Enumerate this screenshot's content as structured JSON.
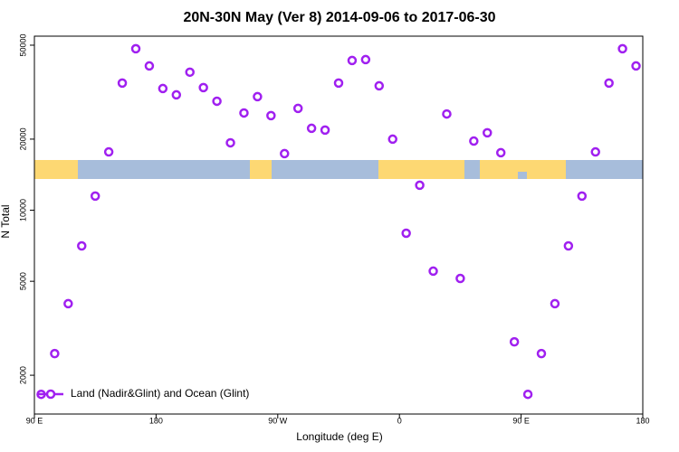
{
  "chart_data": {
    "type": "scatter",
    "title": "20N-30N May (Ver 8)   2014-09-06 to 2017-06-30",
    "x_label": "Longitude (deg E)",
    "y_label": "N Total",
    "log_y": true,
    "xlim": [
      90,
      540
    ],
    "ylim": [
      1370,
      54600
    ],
    "xticks": [
      {
        "value": 90,
        "label": "90 E"
      },
      180,
      {
        "value": 270,
        "label": "90 W"
      },
      {
        "value": 360,
        "label": "0"
      },
      {
        "value": 450,
        "label": "90 E"
      },
      {
        "value": 540,
        "label": "180"
      }
    ],
    "yticks": [
      2000,
      5000,
      10000,
      20000,
      50000
    ],
    "legend": "bottom-left",
    "series": [
      {
        "name": "Land (Nadir&Glint) and Ocean (Glint)",
        "color": "#a020f0",
        "x": [
          95,
          105,
          115,
          125,
          135,
          145,
          155,
          165,
          175,
          185,
          195,
          205,
          215,
          225,
          235,
          245,
          255,
          265,
          275,
          285,
          295,
          305,
          315,
          325,
          335,
          345,
          355,
          365,
          375,
          385,
          395,
          405,
          415,
          425,
          435,
          445,
          455,
          465,
          475,
          485,
          495,
          505,
          515,
          525,
          535
        ],
        "values": [
          1660,
          2470,
          4020,
          7060,
          11480,
          17660,
          34560,
          48310,
          40840,
          32770,
          30810,
          38430,
          33070,
          28950,
          19300,
          25820,
          30270,
          25160,
          17370,
          27000,
          22230,
          21850,
          34560,
          43060,
          43450,
          33650,
          20000,
          7990,
          12760,
          5520,
          25560,
          5140,
          19630,
          21280,
          17520,
          2770,
          1660,
          2470,
          4020,
          7060,
          11480,
          17660,
          34560,
          48310,
          40840
        ]
      }
    ]
  }
}
